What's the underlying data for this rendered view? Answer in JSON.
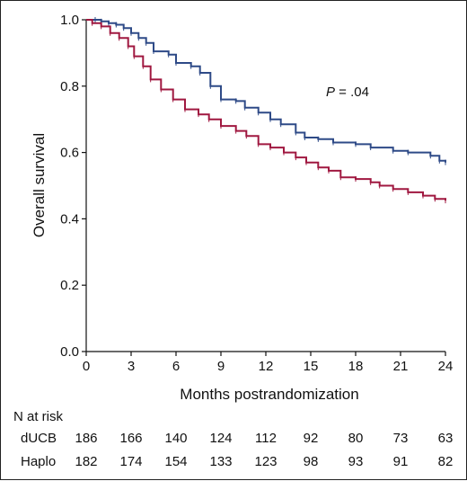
{
  "chart_data": {
    "type": "line",
    "xlabel": "Months postrandomization",
    "ylabel": "Overall survival",
    "xlim": [
      0,
      24
    ],
    "ylim": [
      0,
      1.0
    ],
    "xticks": [
      "0",
      "3",
      "6",
      "9",
      "12",
      "15",
      "18",
      "21",
      "24"
    ],
    "yticks": [
      "0.0",
      "0.2",
      "0.4",
      "0.6",
      "0.8",
      "1.0"
    ],
    "annotation": {
      "italic": "P",
      "rest": " = .04"
    },
    "series": [
      {
        "name": "dUCB",
        "color": "#2e4a87",
        "points": [
          [
            0,
            1.0
          ],
          [
            0.6,
            1.0
          ],
          [
            1.0,
            0.995
          ],
          [
            1.5,
            0.99
          ],
          [
            2.0,
            0.985
          ],
          [
            2.5,
            0.975
          ],
          [
            3.0,
            0.96
          ],
          [
            3.5,
            0.945
          ],
          [
            4.0,
            0.93
          ],
          [
            4.5,
            0.905
          ],
          [
            5.5,
            0.895
          ],
          [
            6.0,
            0.87
          ],
          [
            7.0,
            0.86
          ],
          [
            7.6,
            0.84
          ],
          [
            8.3,
            0.8
          ],
          [
            9.0,
            0.76
          ],
          [
            10.0,
            0.755
          ],
          [
            10.6,
            0.735
          ],
          [
            11.5,
            0.72
          ],
          [
            12.3,
            0.7
          ],
          [
            13.0,
            0.685
          ],
          [
            14.0,
            0.66
          ],
          [
            14.6,
            0.645
          ],
          [
            15.5,
            0.64
          ],
          [
            16.5,
            0.63
          ],
          [
            18.0,
            0.625
          ],
          [
            19.0,
            0.615
          ],
          [
            20.5,
            0.605
          ],
          [
            21.5,
            0.6
          ],
          [
            23.0,
            0.59
          ],
          [
            23.6,
            0.575
          ],
          [
            24.0,
            0.57
          ]
        ]
      },
      {
        "name": "Haplo",
        "color": "#a01840",
        "points": [
          [
            0,
            1.0
          ],
          [
            0.4,
            0.99
          ],
          [
            1.0,
            0.98
          ],
          [
            1.6,
            0.96
          ],
          [
            2.2,
            0.945
          ],
          [
            2.8,
            0.92
          ],
          [
            3.2,
            0.89
          ],
          [
            3.8,
            0.86
          ],
          [
            4.3,
            0.82
          ],
          [
            5.0,
            0.79
          ],
          [
            5.8,
            0.76
          ],
          [
            6.6,
            0.73
          ],
          [
            7.5,
            0.715
          ],
          [
            8.2,
            0.7
          ],
          [
            9.0,
            0.68
          ],
          [
            10.0,
            0.665
          ],
          [
            10.7,
            0.65
          ],
          [
            11.5,
            0.625
          ],
          [
            12.3,
            0.615
          ],
          [
            13.2,
            0.6
          ],
          [
            14.0,
            0.585
          ],
          [
            14.7,
            0.57
          ],
          [
            15.5,
            0.555
          ],
          [
            16.2,
            0.545
          ],
          [
            17.0,
            0.525
          ],
          [
            18.0,
            0.52
          ],
          [
            19.0,
            0.51
          ],
          [
            19.6,
            0.5
          ],
          [
            20.5,
            0.49
          ],
          [
            21.5,
            0.48
          ],
          [
            22.5,
            0.47
          ],
          [
            23.3,
            0.46
          ],
          [
            24.0,
            0.455
          ]
        ]
      }
    ]
  },
  "risk_table": {
    "title": "N at risk",
    "rows": [
      {
        "label": "dUCB",
        "values": [
          "186",
          "166",
          "140",
          "124",
          "112",
          "92",
          "80",
          "73",
          "63"
        ]
      },
      {
        "label": "Haplo",
        "values": [
          "182",
          "174",
          "154",
          "133",
          "123",
          "98",
          "93",
          "91",
          "82"
        ]
      }
    ]
  }
}
